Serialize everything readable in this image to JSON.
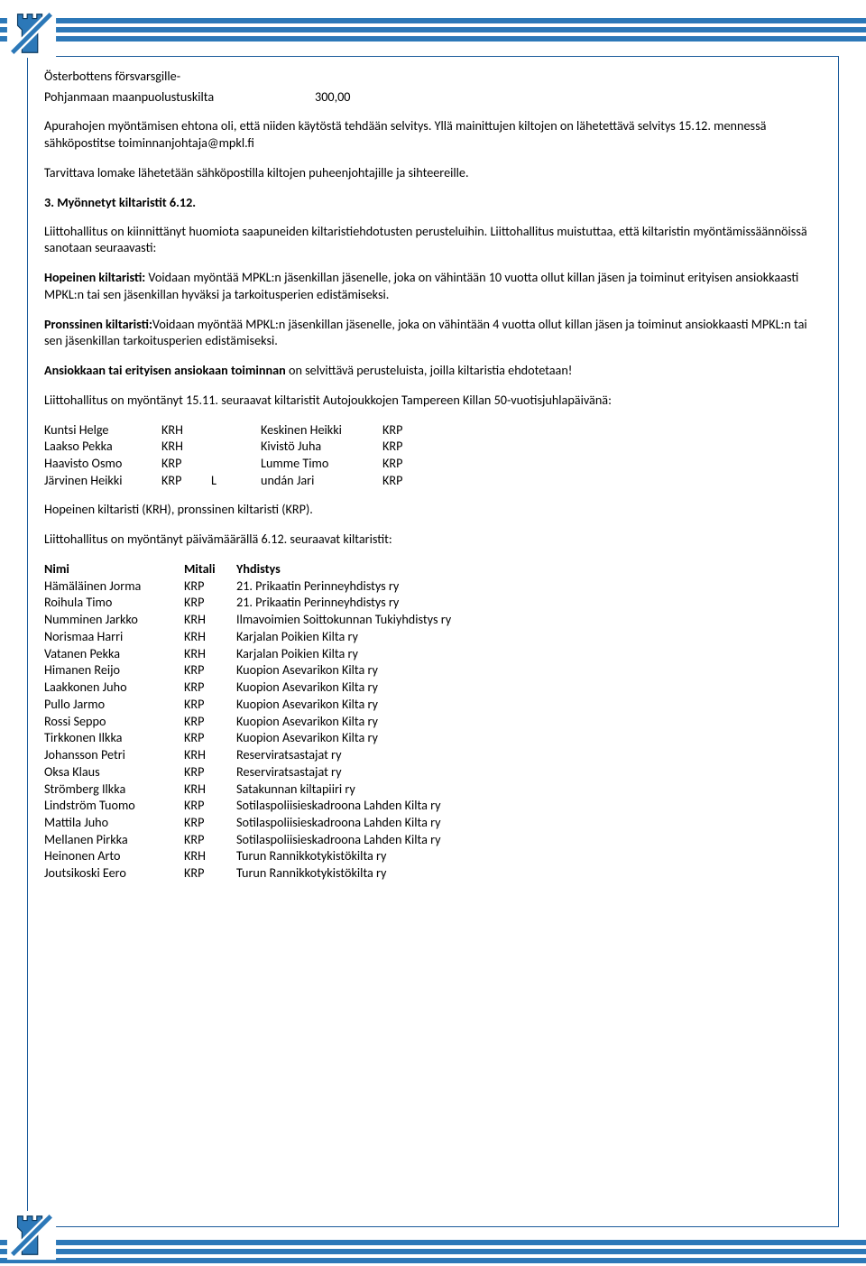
{
  "colors": {
    "stripe": "#2c78b8",
    "border": "#1a5a9a",
    "tower_fill": "#2c78b8",
    "tower_stroke": "#0d3a5f",
    "black": "#000000",
    "white": "#ffffff"
  },
  "intro": {
    "line1": "Österbottens försvarsgille-",
    "line2_a": "Pohjanmaan maanpuolustuskilta",
    "line2_b": "300,00",
    "p1": "Apurahojen myöntämisen ehtona oli, että niiden käytöstä tehdään selvitys. Yllä mainittujen kiltojen on lähetettävä selvitys 15.12. mennessä sähköpostitse toiminnanjohtaja@mpkl.fi",
    "p2": "Tarvittava lomake lähetetään sähköpostilla kiltojen puheenjohtajille ja sihteereille."
  },
  "section3": {
    "heading": "3. Myönnetyt kiltaristit 6.12.",
    "p1": "Liittohallitus on kiinnittänyt huomiota saapuneiden kiltaristiehdotusten perusteluihin. Liittohallitus muistuttaa, että kiltaristin myöntämissäännöissä sanotaan seuraavasti:",
    "hopeinen_label": "Hopeinen kiltaristi:",
    "hopeinen_text": " Voidaan myöntää MPKL:n jäsenkillan jäsenelle, joka on vähintään 10 vuotta ollut killan jäsen ja toiminut erityisen ansiokkaasti MPKL:n tai sen jäsenkillan hyväksi ja tarkoitusperien edistämiseksi.",
    "pronssinen_label": "Pronssinen kiltaristi:",
    "pronssinen_text": "Voidaan myöntää MPKL:n jäsenkillan jäsenelle, joka on vähintään 4 vuotta ollut killan jäsen ja toiminut ansiokkaasti MPKL:n tai sen jäsenkillan tarkoitusperien edistämiseksi.",
    "ansiokkaan_label": "Ansiokkaan tai erityisen ansiokaan toiminnan",
    "ansiokkaan_text": " on selvittävä perusteluista, joilla kiltaristia ehdotetaan!",
    "myontanyt1": "Liittohallitus on myöntänyt 15.11. seuraavat kiltaristit Autojoukkojen Tampereen Killan 50-vuotisjuhlapäivänä:"
  },
  "list1": [
    {
      "n1": "Kuntsi Helge",
      "m1": "KRH",
      "sp": "",
      "n2": "Keskinen Heikki",
      "m2": "KRP"
    },
    {
      "n1": "Laakso Pekka",
      "m1": "KRH",
      "sp": "",
      "n2": "Kivistö Juha",
      "m2": "KRP"
    },
    {
      "n1": "Haavisto Osmo",
      "m1": "KRP",
      "sp": "",
      "n2": "Lumme Timo",
      "m2": "KRP"
    },
    {
      "n1": "Järvinen Heikki",
      "m1": "KRP",
      "sp": "L",
      "n2": "undán Jari",
      "m2": "KRP"
    }
  ],
  "legend": "Hopeinen kiltaristi (KRH), pronssinen kiltaristi (KRP).",
  "myontanyt2": "Liittohallitus on myöntänyt päivämäärällä 6.12. seuraavat kiltaristit:",
  "table_head": {
    "c1": "Nimi",
    "c2": "Mitali",
    "c3": "Yhdistys"
  },
  "list2": [
    {
      "n": "Hämäläinen Jorma",
      "m": "KRP",
      "a": "21. Prikaatin Perinneyhdistys ry"
    },
    {
      "n": "Roihula Timo",
      "m": "KRP",
      "a": "21. Prikaatin Perinneyhdistys ry"
    },
    {
      "n": "Numminen Jarkko",
      "m": "KRH",
      "a": "Ilmavoimien Soittokunnan Tukiyhdistys ry"
    },
    {
      "n": "Norismaa Harri",
      "m": "KRH",
      "a": "Karjalan Poikien Kilta ry"
    },
    {
      "n": "Vatanen Pekka",
      "m": "KRH",
      "a": "Karjalan Poikien Kilta ry"
    },
    {
      "n": "Himanen Reijo",
      "m": "KRP",
      "a": "Kuopion Asevarikon Kilta ry"
    },
    {
      "n": "Laakkonen Juho",
      "m": "KRP",
      "a": "Kuopion Asevarikon Kilta ry"
    },
    {
      "n": "Pullo Jarmo",
      "m": "KRP",
      "a": "Kuopion Asevarikon Kilta ry"
    },
    {
      "n": "Rossi Seppo",
      "m": "KRP",
      "a": "Kuopion Asevarikon Kilta ry"
    },
    {
      "n": "Tirkkonen Ilkka",
      "m": "KRP",
      "a": "Kuopion Asevarikon Kilta ry"
    },
    {
      "n": "Johansson Petri",
      "m": "KRH",
      "a": "Reserviratsastajat ry"
    },
    {
      "n": "Oksa Klaus",
      "m": "KRP",
      "a": "Reserviratsastajat ry"
    },
    {
      "n": "Strömberg Ilkka",
      "m": "KRH",
      "a": "Satakunnan kiltapiiri ry"
    },
    {
      "n": "Lindström Tuomo",
      "m": "KRP",
      "a": "Sotilaspoliisieskadroona Lahden Kilta ry"
    },
    {
      "n": "Mattila Juho",
      "m": "KRP",
      "a": "Sotilaspoliisieskadroona Lahden Kilta ry"
    },
    {
      "n": "Mellanen Pirkka",
      "m": "KRP",
      "a": "Sotilaspoliisieskadroona Lahden Kilta ry"
    },
    {
      "n": "Heinonen Arto",
      "m": "KRH",
      "a": "Turun Rannikkotykistökilta ry"
    },
    {
      "n": "Joutsikoski Eero",
      "m": "KRP",
      "a": "Turun Rannikkotykistökilta ry"
    }
  ]
}
